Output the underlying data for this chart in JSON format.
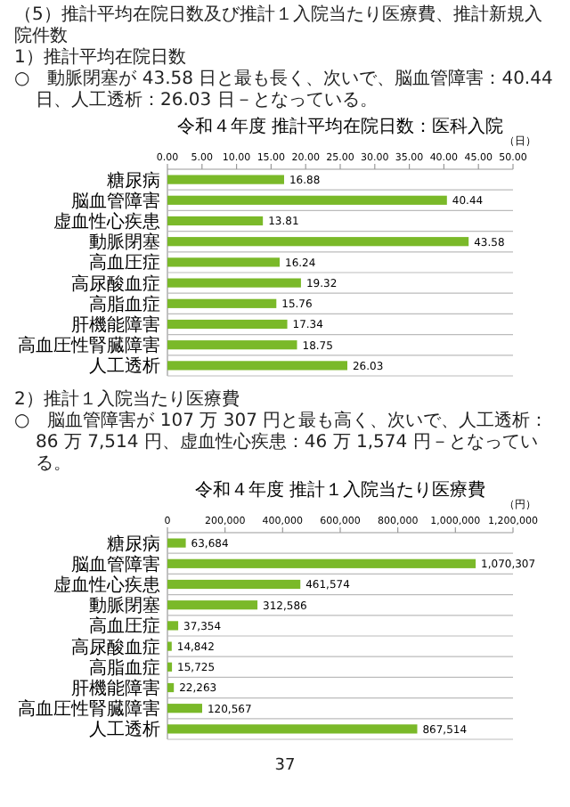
{
  "chart_data": [
    {
      "type": "bar",
      "orientation": "horizontal",
      "title": "令和４年度 推計平均在院日数：医科入院",
      "xlabel": "（日）",
      "annotations": [
        "（5）推計平均在院日数及び推計１入院当たり医療費、推計新規入院件数",
        "1）推計平均在院日数",
        "○　動脈閉塞が 43.58 日と最も長く、次いで、脳血管障害：40.44 日、人工透析：26.03 日－となっている。"
      ],
      "categories": [
        "糖尿病",
        "脳血管障害",
        "虚血性心疾患",
        "動脈閉塞",
        "高血圧症",
        "高尿酸血症",
        "高脂血症",
        "肝機能障害",
        "高血圧性腎臓障害",
        "人工透析"
      ],
      "values": [
        16.88,
        40.44,
        13.81,
        43.58,
        16.24,
        19.32,
        15.76,
        17.34,
        18.75,
        26.03
      ],
      "color": "#7ab929",
      "xlim": [
        0,
        50
      ],
      "xticks": [
        {
          "value": 0,
          "label": "0.00"
        },
        {
          "value": 5,
          "label": "5.00"
        },
        {
          "value": 10,
          "label": "10.00"
        },
        {
          "value": 15,
          "label": "15.00"
        },
        {
          "value": 20,
          "label": "20.00"
        },
        {
          "value": 25,
          "label": "25.00"
        },
        {
          "value": 30,
          "label": "30.00"
        },
        {
          "value": 35,
          "label": "35.00"
        },
        {
          "value": 40,
          "label": "40.00"
        },
        {
          "value": 45,
          "label": "45.00"
        },
        {
          "value": 50,
          "label": "50.00"
        }
      ],
      "grid": "y",
      "data_labels": true
    },
    {
      "type": "bar",
      "orientation": "horizontal",
      "title": "令和４年度 推計１入院当たり医療費",
      "xlabel": "（円）",
      "annotations": [
        "2）推計１入院当たり医療費",
        "○　脳血管障害が 107 万 307 円と最も高く、次いで、人工透析：86 万 7,514 円、虚血性心疾患：46 万 1,574 円－となっている。",
        "37"
      ],
      "categories": [
        "糖尿病",
        "脳血管障害",
        "虚血性心疾患",
        "動脈閉塞",
        "高血圧症",
        "高尿酸血症",
        "高脂血症",
        "肝機能障害",
        "高血圧性腎臓障害",
        "人工透析"
      ],
      "values": [
        63684,
        1070307,
        461574,
        312586,
        37354,
        14842,
        15725,
        22263,
        120567,
        867514
      ],
      "value_labels": [
        "63,684",
        "1,070,307",
        "461,574",
        "312,586",
        "37,354",
        "14,842",
        "15,725",
        "22,263",
        "120,567",
        "867,514"
      ],
      "color": "#7ab929",
      "xlim": [
        0,
        1200000
      ],
      "xticks": [
        0,
        {
          "value": 200000,
          "label": "200,000"
        },
        {
          "value": 400000,
          "label": "400,000"
        },
        {
          "value": 600000,
          "label": "600,000"
        },
        {
          "value": 800000,
          "label": "800,000"
        },
        {
          "value": 1000000,
          "label": "1,000,000"
        },
        {
          "value": 1200000,
          "label": "1,200,000"
        }
      ],
      "grid": "y"
    }
  ]
}
